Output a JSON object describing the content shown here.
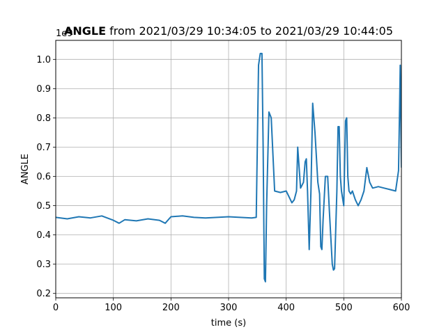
{
  "chart_data": {
    "type": "line",
    "title_bold": "ANGLE",
    "title_rest": " from 2021/03/29 10:34:05 to 2021/03/29 10:44:05",
    "xlabel": "time (s)",
    "ylabel": "ANGLE",
    "y_offset_label": "1e9",
    "xlim": [
      0,
      600
    ],
    "ylim": [
      0.185,
      1.065
    ],
    "x_ticks": [
      0,
      100,
      200,
      300,
      400,
      500,
      600
    ],
    "x_tick_labels": [
      "0",
      "100",
      "200",
      "300",
      "400",
      "500",
      "600"
    ],
    "y_ticks": [
      0.2,
      0.3,
      0.4,
      0.5,
      0.6,
      0.7,
      0.8,
      0.9,
      1.0
    ],
    "y_tick_labels": [
      "0.2",
      "0.3",
      "0.4",
      "0.5",
      "0.6",
      "0.7",
      "0.8",
      "0.9",
      "1.0"
    ],
    "grid": true,
    "line_color": "#1f77b4",
    "series": [
      {
        "x": [
          0,
          20,
          40,
          60,
          80,
          100,
          110,
          120,
          140,
          160,
          180,
          190,
          200,
          220,
          240,
          260,
          280,
          300,
          320,
          340,
          348,
          352,
          355,
          358,
          360,
          362,
          364,
          366,
          370,
          374,
          380,
          390,
          400,
          405,
          410,
          414,
          418,
          420,
          425,
          430,
          433,
          435,
          437,
          440,
          443,
          446,
          450,
          455,
          458,
          460,
          462,
          464,
          468,
          472,
          475,
          480,
          482,
          484,
          488,
          490,
          492,
          494,
          496,
          500,
          503,
          505,
          507,
          509,
          512,
          515,
          520,
          525,
          530,
          535,
          540,
          545,
          550,
          560,
          570,
          580,
          590,
          595,
          597,
          598,
          600
        ],
        "y": [
          0.46,
          0.455,
          0.462,
          0.458,
          0.465,
          0.45,
          0.44,
          0.452,
          0.448,
          0.455,
          0.45,
          0.44,
          0.462,
          0.465,
          0.46,
          0.458,
          0.46,
          0.462,
          0.46,
          0.458,
          0.46,
          0.98,
          1.02,
          1.02,
          0.7,
          0.25,
          0.24,
          0.5,
          0.82,
          0.8,
          0.55,
          0.545,
          0.55,
          0.53,
          0.51,
          0.52,
          0.55,
          0.7,
          0.56,
          0.58,
          0.65,
          0.66,
          0.55,
          0.35,
          0.55,
          0.85,
          0.75,
          0.58,
          0.54,
          0.36,
          0.35,
          0.45,
          0.6,
          0.6,
          0.48,
          0.3,
          0.28,
          0.285,
          0.55,
          0.77,
          0.77,
          0.6,
          0.55,
          0.5,
          0.79,
          0.8,
          0.6,
          0.55,
          0.54,
          0.55,
          0.52,
          0.5,
          0.52,
          0.55,
          0.63,
          0.58,
          0.56,
          0.565,
          0.56,
          0.555,
          0.55,
          0.62,
          0.85,
          0.98,
          0.63
        ]
      }
    ]
  }
}
